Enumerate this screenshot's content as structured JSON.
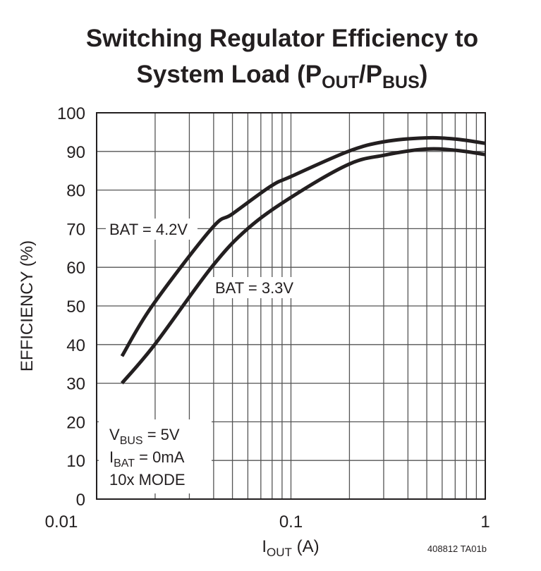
{
  "chart_data": {
    "type": "line",
    "title_line1": "Switching Regulator Efficiency to",
    "title_line2": {
      "pre": "System Load (P",
      "sub1": "OUT",
      "mid": "/P",
      "sub2": "BUS",
      "post": ")"
    },
    "xlabel": {
      "main": "I",
      "sub": "OUT",
      "post": " (A)"
    },
    "ylabel": "EFFICIENCY (%)",
    "x_scale": "log",
    "xlim": [
      0.01,
      1
    ],
    "ylim": [
      0,
      100
    ],
    "x_ticks": [
      {
        "value": 0.01,
        "label": "0.01"
      },
      {
        "value": 0.1,
        "label": "0.1"
      },
      {
        "value": 1,
        "label": "1"
      }
    ],
    "y_ticks": [
      0,
      10,
      20,
      30,
      40,
      50,
      60,
      70,
      80,
      90,
      100
    ],
    "grid": true,
    "series": [
      {
        "name": "BAT = 4.2V",
        "x": [
          0.0135,
          0.0193,
          0.039,
          0.0499,
          0.0788,
          0.1,
          0.197,
          0.3,
          0.492,
          0.7,
          1
        ],
        "y": [
          37,
          50,
          70,
          73.8,
          81,
          83.5,
          90,
          92.5,
          93.5,
          93.2,
          92.1
        ]
      },
      {
        "name": "BAT = 3.3V",
        "x": [
          0.0135,
          0.0199,
          0.039,
          0.0599,
          0.1,
          0.197,
          0.3,
          0.492,
          0.7,
          1
        ],
        "y": [
          30,
          40,
          60,
          70,
          78.1,
          86.6,
          89,
          90.6,
          90.3,
          89.2
        ]
      }
    ],
    "conditions": [
      {
        "main": "V",
        "sub": "BUS",
        "post": " = 5V"
      },
      {
        "main": "I",
        "sub": "BAT",
        "post": " = 0mA"
      },
      {
        "main": "10x MODE",
        "sub": "",
        "post": ""
      }
    ],
    "figure_id": "408812 TA01b",
    "line_color": "#231f20"
  }
}
